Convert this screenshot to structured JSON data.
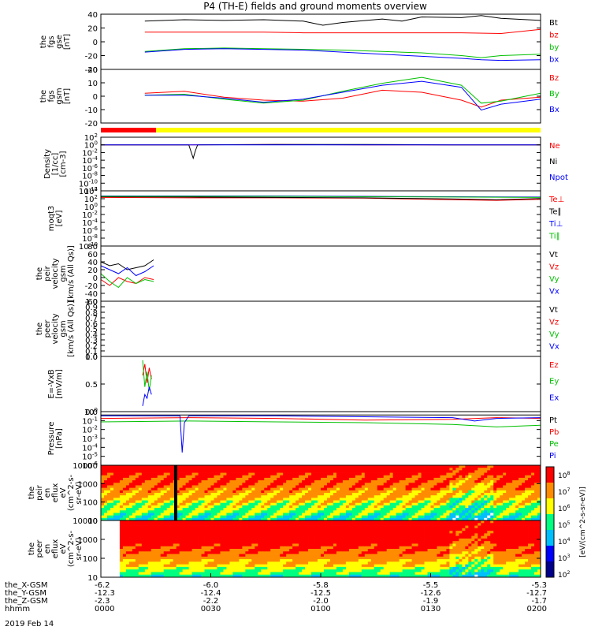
{
  "title": "P4 (TH-E) fields and ground moments overview",
  "date_label": "2019 Feb 14",
  "mode_bar": {
    "colors": [
      "#ff0000",
      "#ffff00"
    ]
  },
  "colorbar": {
    "label": "[eV/(cm^2-s-sr-eV)]",
    "ticks": [
      "10^8",
      "10^7",
      "10^6",
      "10^5",
      "10^4",
      "10^3",
      "10^2"
    ]
  },
  "chart_data": [
    {
      "type": "line",
      "ylabel": [
        "the",
        "fgs",
        "gse",
        "[nT]"
      ],
      "ylim": [
        -40,
        40
      ],
      "yticks": [
        "40",
        "20",
        "0",
        "-20",
        "-40"
      ],
      "legend": [
        {
          "label": "Bt",
          "color": "#000000"
        },
        {
          "label": "bz",
          "color": "#ff0000"
        },
        {
          "label": "by",
          "color": "#00c000"
        },
        {
          "label": "bx",
          "color": "#0000ff"
        }
      ],
      "series": [
        {
          "name": "Bt",
          "color": "#000000",
          "x": [
            0,
            0.05,
            0.1,
            0.2,
            0.3,
            0.4,
            0.45,
            0.5,
            0.6,
            0.65,
            0.7,
            0.8,
            0.85,
            0.9,
            1.0
          ],
          "y": [
            30,
            31,
            32,
            31,
            32,
            30,
            24,
            28,
            33,
            30,
            36,
            35,
            38,
            34,
            31
          ]
        },
        {
          "name": "bz",
          "color": "#ff0000",
          "x": [
            0,
            0.1,
            0.2,
            0.3,
            0.4,
            0.5,
            0.6,
            0.7,
            0.8,
            0.9,
            1.0
          ],
          "y": [
            14,
            14,
            14,
            14,
            13,
            13,
            13,
            13,
            13,
            12,
            18
          ]
        },
        {
          "name": "by",
          "color": "#00c000",
          "x": [
            0,
            0.1,
            0.2,
            0.3,
            0.4,
            0.5,
            0.6,
            0.7,
            0.8,
            0.85,
            0.9,
            1.0
          ],
          "y": [
            -14,
            -10,
            -9,
            -10,
            -11,
            -12,
            -14,
            -16,
            -20,
            -23,
            -20,
            -18
          ]
        },
        {
          "name": "bx",
          "color": "#0000ff",
          "x": [
            0,
            0.1,
            0.2,
            0.3,
            0.4,
            0.5,
            0.6,
            0.7,
            0.8,
            0.85,
            0.9,
            1.0
          ],
          "y": [
            -15,
            -11,
            -10,
            -11,
            -12,
            -15,
            -18,
            -21,
            -24,
            -26,
            -27,
            -26
          ]
        }
      ]
    },
    {
      "type": "line",
      "ylabel": [
        "the",
        "fgs",
        "gsm",
        "[nT]"
      ],
      "ylim": [
        -28,
        26
      ],
      "yticks": [
        "20",
        "10",
        "0",
        "-10",
        "-20"
      ],
      "legend": [
        {
          "label": "Bz",
          "color": "#ff0000"
        },
        {
          "label": "By",
          "color": "#00c000"
        },
        {
          "label": "Bx",
          "color": "#0000ff"
        }
      ],
      "series": [
        {
          "name": "Bz",
          "color": "#ff0000",
          "x": [
            0,
            0.1,
            0.2,
            0.3,
            0.4,
            0.5,
            0.6,
            0.7,
            0.8,
            0.85,
            0.9,
            1.0
          ],
          "y": [
            2,
            4,
            -2,
            -5,
            -6,
            -3,
            5,
            3,
            -5,
            -12,
            -5,
            -2
          ]
        },
        {
          "name": "By",
          "color": "#00c000",
          "x": [
            0,
            0.1,
            0.2,
            0.3,
            0.4,
            0.5,
            0.6,
            0.7,
            0.8,
            0.85,
            0.9,
            1.0
          ],
          "y": [
            0,
            1,
            -4,
            -8,
            -5,
            4,
            12,
            18,
            10,
            -8,
            -6,
            2
          ]
        },
        {
          "name": "Bx",
          "color": "#0000ff",
          "x": [
            0,
            0.1,
            0.2,
            0.3,
            0.4,
            0.5,
            0.6,
            0.7,
            0.8,
            0.85,
            0.9,
            1.0
          ],
          "y": [
            0,
            0,
            -3,
            -7,
            -4,
            3,
            10,
            14,
            8,
            -15,
            -9,
            -4
          ]
        }
      ]
    },
    {
      "type": "line",
      "ylabel": [
        "Density",
        "[1/cc]",
        "[cm-3]"
      ],
      "yscale": "log",
      "ylim": [
        -12,
        2
      ],
      "yticks": [
        "10^2",
        "10^0",
        "10^-2",
        "10^-4",
        "10^-6",
        "10^-8",
        "10^-10",
        "10^-12"
      ],
      "legend": [
        {
          "label": "Ne",
          "color": "#ff0000"
        },
        {
          "label": "Ni",
          "color": "#000000"
        },
        {
          "label": "Npot",
          "color": "#0000ff"
        }
      ],
      "series": [
        {
          "name": "Ne",
          "color": "#ff0000",
          "x": [
            0,
            0.2,
            0.4,
            0.6,
            0.8,
            1.0
          ],
          "y": [
            0,
            0,
            0.1,
            0,
            0,
            0
          ]
        },
        {
          "name": "Ni",
          "color": "#000000",
          "x": [
            0,
            0.2,
            0.21,
            0.215,
            0.22,
            0.4,
            0.6,
            0.8,
            1.0
          ],
          "y": [
            0,
            0,
            -3.5,
            -1.5,
            0,
            0.1,
            0.1,
            0,
            0
          ]
        },
        {
          "name": "Npot",
          "color": "#0000ff",
          "x": [
            0,
            0.2,
            0.4,
            0.6,
            0.8,
            1.0
          ],
          "y": [
            0,
            0,
            0,
            0,
            0,
            0
          ]
        }
      ]
    },
    {
      "type": "line",
      "ylabel": [
        "moqt3",
        "[eV]"
      ],
      "yscale": "log",
      "ylim": [
        -10,
        5
      ],
      "yticks": [
        "10^4",
        "10^2",
        "10^0",
        "10^-2",
        "10^-4",
        "10^-6",
        "10^-8",
        "10^-10"
      ],
      "legend": [
        {
          "label": "Te⊥",
          "color": "#ff0000"
        },
        {
          "label": "Te∥",
          "color": "#000000"
        },
        {
          "label": "Ti⊥",
          "color": "#0000ff"
        },
        {
          "label": "Ti∥",
          "color": "#00c000"
        }
      ],
      "series": [
        {
          "name": "Te⊥",
          "color": "#ff0000",
          "x": [
            0,
            0.2,
            0.4,
            0.6,
            0.8,
            0.9,
            1.0
          ],
          "y": [
            3.2,
            3.1,
            3.1,
            3.0,
            2.6,
            2.4,
            2.7
          ]
        },
        {
          "name": "Te∥",
          "color": "#000000",
          "x": [
            0,
            0.2,
            0.4,
            0.6,
            0.8,
            0.9,
            1.0
          ],
          "y": [
            3.4,
            3.3,
            3.2,
            3.1,
            2.8,
            2.6,
            2.9
          ]
        },
        {
          "name": "Ti⊥",
          "color": "#0000ff",
          "x": [
            0,
            0.2,
            0.4,
            0.6,
            0.8,
            1.0
          ],
          "y": [
            3.6,
            3.6,
            3.6,
            3.5,
            3.4,
            3.3
          ]
        },
        {
          "name": "Ti∥",
          "color": "#00c000",
          "x": [
            0,
            0.2,
            0.4,
            0.6,
            0.8,
            1.0
          ],
          "y": [
            3.5,
            3.5,
            3.5,
            3.4,
            3.3,
            3.2
          ]
        }
      ]
    },
    {
      "type": "line",
      "ylabel": [
        "the",
        "peir",
        "velocity",
        "gsm",
        "[km/s (All Qs)]"
      ],
      "ylim": [
        -60,
        80
      ],
      "yticks": [
        "80",
        "60",
        "40",
        "20",
        "0",
        "-20",
        "-40",
        "-60"
      ],
      "legend": [
        {
          "label": "Vt",
          "color": "#000000"
        },
        {
          "label": "Vz",
          "color": "#ff0000"
        },
        {
          "label": "Vy",
          "color": "#00c000"
        },
        {
          "label": "Vx",
          "color": "#0000ff"
        }
      ],
      "series": [
        {
          "name": "Vt",
          "color": "#000000",
          "x": [
            0,
            0.02,
            0.04,
            0.06,
            0.08,
            0.1,
            0.12
          ],
          "y": [
            40,
            30,
            35,
            20,
            25,
            30,
            45
          ]
        },
        {
          "name": "Vz",
          "color": "#ff0000",
          "x": [
            0,
            0.02,
            0.04,
            0.06,
            0.08,
            0.1,
            0.12
          ],
          "y": [
            -5,
            -20,
            0,
            -10,
            -15,
            0,
            -5
          ]
        },
        {
          "name": "Vy",
          "color": "#00c000",
          "x": [
            0,
            0.02,
            0.04,
            0.06,
            0.08,
            0.1,
            0.12
          ],
          "y": [
            10,
            -10,
            -25,
            0,
            -15,
            -5,
            -10
          ]
        },
        {
          "name": "Vx",
          "color": "#0000ff",
          "x": [
            0,
            0.02,
            0.04,
            0.06,
            0.08,
            0.1,
            0.12
          ],
          "y": [
            30,
            20,
            10,
            25,
            5,
            15,
            30
          ]
        }
      ]
    },
    {
      "type": "line",
      "ylabel": [
        "the",
        "peer",
        "velocity",
        "gsm",
        "[km/s (All Qs)]"
      ],
      "ylim": [
        0,
        1
      ],
      "yticks": [
        "1.0",
        "0.9",
        "0.8",
        "0.7",
        "0.6",
        "0.5",
        "0.4",
        "0.3",
        "0.2",
        "0.1",
        "0.0"
      ],
      "legend": [
        {
          "label": "Vt",
          "color": "#000000"
        },
        {
          "label": "Vz",
          "color": "#ff0000"
        },
        {
          "label": "Vy",
          "color": "#00c000"
        },
        {
          "label": "Vx",
          "color": "#0000ff"
        }
      ],
      "series": []
    },
    {
      "type": "line",
      "ylabel": [
        "E=-VxB",
        "[mV/m]"
      ],
      "ylim": [
        -0.45,
        1.0
      ],
      "yticks": [
        "1.0",
        "0.5",
        "0.0"
      ],
      "legend": [
        {
          "label": "Ez",
          "color": "#ff0000"
        },
        {
          "label": "Ey",
          "color": "#00c000"
        },
        {
          "label": "Ex",
          "color": "#0000ff"
        }
      ],
      "series": [
        {
          "name": "Ez",
          "color": "#ff0000",
          "x": [
            0.095,
            0.1,
            0.105,
            0.11,
            0.115
          ],
          "y": [
            0.5,
            0.8,
            0.3,
            0.7,
            0.4
          ]
        },
        {
          "name": "Ey",
          "color": "#00c000",
          "x": [
            0.095,
            0.1,
            0.105,
            0.11,
            0.115
          ],
          "y": [
            0.9,
            0.2,
            0.6,
            0.1,
            0.5
          ]
        },
        {
          "name": "Ex",
          "color": "#0000ff",
          "x": [
            0.095,
            0.1,
            0.105,
            0.11,
            0.115
          ],
          "y": [
            -0.3,
            0.0,
            -0.1,
            0.2,
            0.0
          ]
        }
      ]
    },
    {
      "type": "line",
      "ylabel": [
        "Pressure",
        "[nPa]"
      ],
      "yscale": "log",
      "ylim": [
        -6,
        0.3
      ],
      "yticks": [
        "10^0",
        "10^-1",
        "10^-2",
        "10^-3",
        "10^-4",
        "10^-5",
        "10^-6"
      ],
      "legend": [
        {
          "label": "Pt",
          "color": "#000000"
        },
        {
          "label": "Pb",
          "color": "#ff0000"
        },
        {
          "label": "Pe",
          "color": "#00c000"
        },
        {
          "label": "Pi",
          "color": "#0000ff"
        }
      ],
      "series": [
        {
          "name": "Pt",
          "color": "#000000",
          "x": [
            0,
            0.2,
            0.4,
            0.6,
            0.8,
            1.0
          ],
          "y": [
            -0.1,
            -0.1,
            -0.1,
            -0.1,
            -0.1,
            -0.1
          ]
        },
        {
          "name": "Pb",
          "color": "#ff0000",
          "x": [
            0,
            0.2,
            0.4,
            0.6,
            0.8,
            0.9,
            1.0
          ],
          "y": [
            -0.5,
            -0.4,
            -0.5,
            -0.7,
            -0.6,
            -0.4,
            -0.5
          ]
        },
        {
          "name": "Pe",
          "color": "#00c000",
          "x": [
            0,
            0.2,
            0.4,
            0.6,
            0.8,
            0.9,
            1.0
          ],
          "y": [
            -0.9,
            -0.8,
            -0.9,
            -1.0,
            -1.2,
            -1.5,
            -1.3
          ]
        },
        {
          "name": "Pi",
          "color": "#0000ff",
          "x": [
            0,
            0.18,
            0.185,
            0.19,
            0.2,
            0.4,
            0.6,
            0.8,
            0.85,
            0.9,
            1.0
          ],
          "y": [
            -0.2,
            -0.2,
            -4.5,
            -1.0,
            -0.2,
            -0.2,
            -0.3,
            -0.4,
            -0.8,
            -0.5,
            -0.4
          ]
        }
      ]
    },
    {
      "type": "heatmap",
      "ylabel": [
        "the",
        "peir",
        "en",
        "eflux",
        "eV",
        "(cm^2-s-",
        "sr-eV)"
      ],
      "yscale": "log",
      "yticks": [
        "10000",
        "1000",
        "100",
        "10"
      ],
      "ylim_log": [
        0.8,
        4.3
      ],
      "x_start": 0.0
    },
    {
      "type": "heatmap",
      "ylabel": [
        "the",
        "peer",
        "en",
        "eflux",
        "eV",
        "(cm^2-s-",
        "sr-eV)"
      ],
      "yscale": "log",
      "yticks": [
        "10000",
        "1000",
        "100",
        "10"
      ],
      "ylim_log": [
        0.8,
        4.3
      ],
      "x_start": 0.04
    }
  ],
  "x_axis": {
    "row_labels": [
      "the_X-GSM",
      "the_Y-GSM",
      "the_Z-GSM",
      "hhmm"
    ],
    "ticks": [
      {
        "pos": 0.0,
        "values": [
          "-6.2",
          "-12.3",
          "-2.3",
          "0000"
        ]
      },
      {
        "pos": 0.25,
        "values": [
          "-6.0",
          "-12.4",
          "-2.2",
          "0030"
        ]
      },
      {
        "pos": 0.5,
        "values": [
          "-5.8",
          "-12.5",
          "-2.0",
          "0100"
        ]
      },
      {
        "pos": 0.75,
        "values": [
          "-5.5",
          "-12.6",
          "-1.9",
          "0130"
        ]
      },
      {
        "pos": 1.0,
        "values": [
          "-5.3",
          "-12.7",
          "-1.7",
          "0200"
        ]
      }
    ]
  }
}
